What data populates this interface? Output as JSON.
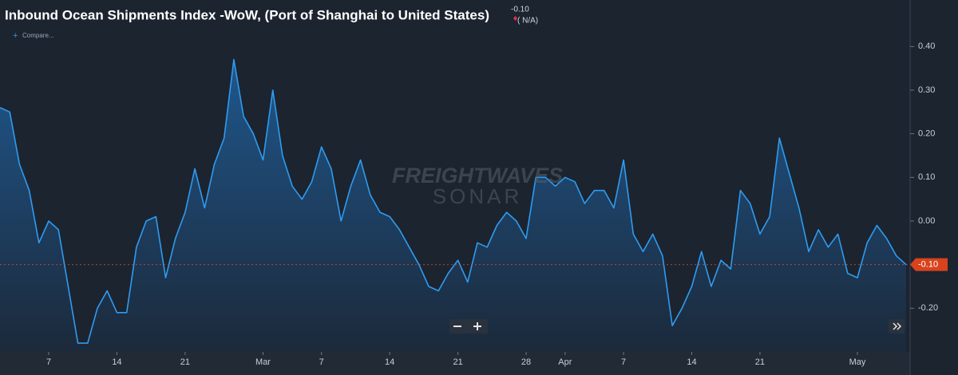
{
  "chart_data": {
    "type": "area",
    "title": "Inbound Ocean Shipments Index -WoW, (Port of Shanghai to United States)",
    "current_value": "-0.10",
    "change": "( N/A)",
    "compare_label": "Compare...",
    "watermark": [
      "FREIGHTWAVES",
      "SONAR"
    ],
    "categories": [
      null,
      null,
      null,
      null,
      null,
      "7",
      null,
      null,
      null,
      null,
      null,
      null,
      "14",
      null,
      null,
      null,
      null,
      null,
      null,
      "21",
      null,
      null,
      null,
      null,
      null,
      null,
      null,
      "Mar",
      null,
      null,
      null,
      null,
      null,
      "7",
      null,
      null,
      null,
      null,
      null,
      null,
      "14",
      null,
      null,
      null,
      null,
      null,
      null,
      "21",
      null,
      null,
      null,
      null,
      null,
      null,
      "28",
      null,
      null,
      null,
      "Apr",
      null,
      null,
      null,
      null,
      null,
      "7",
      null,
      null,
      null,
      null,
      null,
      null,
      "14",
      null,
      null,
      null,
      null,
      null,
      null,
      "21",
      null,
      null,
      null,
      null,
      null,
      null,
      null,
      null,
      null,
      "May",
      null,
      null,
      null,
      null,
      null
    ],
    "series": [
      {
        "name": "Inbound Ocean Shipments Index -WoW",
        "color": "#2e9cf0",
        "values": [
          0.26,
          0.25,
          0.13,
          0.07,
          -0.05,
          0,
          -0.02,
          -0.15,
          -0.28,
          -0.28,
          -0.2,
          -0.16,
          -0.21,
          -0.21,
          -0.06,
          0,
          0.01,
          -0.13,
          -0.04,
          0.02,
          0.12,
          0.03,
          0.13,
          0.19,
          0.37,
          0.24,
          0.2,
          0.14,
          0.3,
          0.15,
          0.08,
          0.05,
          0.09,
          0.17,
          0.12,
          0,
          0.08,
          0.14,
          0.06,
          0.02,
          0.01,
          -0.02,
          -0.06,
          -0.1,
          -0.15,
          -0.16,
          -0.12,
          -0.09,
          -0.14,
          -0.05,
          -0.06,
          -0.01,
          0.02,
          0,
          -0.04,
          0.1,
          0.1,
          0.08,
          0.1,
          0.09,
          0.04,
          0.07,
          0.07,
          0.03,
          0.14,
          -0.03,
          -0.07,
          -0.03,
          -0.08,
          -0.24,
          -0.2,
          -0.15,
          -0.07,
          -0.15,
          -0.09,
          -0.11,
          0.07,
          0.04,
          -0.03,
          0.01,
          0.19,
          0.11,
          0.03,
          -0.07,
          -0.02,
          -0.06,
          -0.03,
          -0.12,
          -0.13,
          -0.05,
          -0.01,
          -0.04,
          -0.08,
          -0.1
        ]
      }
    ],
    "ylim": [
      -0.3,
      0.45
    ],
    "yticks": [
      {
        "value": 0.4,
        "label": "0.40"
      },
      {
        "value": 0.3,
        "label": "0.30"
      },
      {
        "value": 0.2,
        "label": "0.20"
      },
      {
        "value": 0.1,
        "label": "0.10"
      },
      {
        "value": 0,
        "label": "0.00"
      },
      {
        "value": -0.2,
        "label": "-0.20"
      }
    ],
    "grid": false
  }
}
